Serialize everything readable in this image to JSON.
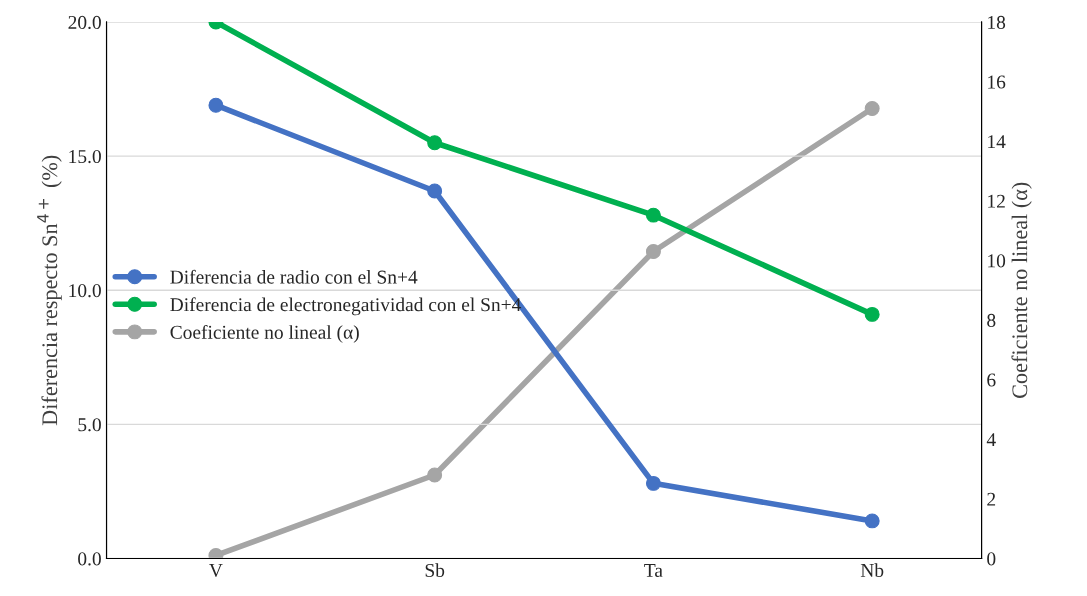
{
  "chart_data": {
    "type": "line",
    "categories": [
      "V",
      "Sb",
      "Ta",
      "Nb"
    ],
    "ylabel": "Diferencia respecto Sn$^{4+}$ (%)",
    "y2label": "Coeficiente no lineal (α)",
    "series": [
      {
        "name": "Diferencia de radio con el Sn+4",
        "color": "#4472c4",
        "values": [
          16.9,
          13.7,
          2.8,
          1.4
        ]
      },
      {
        "name": "Diferencia de electronegatividad con el Sn+4",
        "color": "#00b050",
        "values": [
          20.0,
          15.5,
          12.8,
          9.1
        ]
      },
      {
        "name": "Coeficiente no lineal (α)",
        "color": "#a5a5a5",
        "values": [
          0.1,
          2.8,
          10.3,
          15.1
        ],
        "axis": "y2"
      }
    ],
    "ylim": [
      0,
      20
    ],
    "yticks": [
      {
        "value": 0,
        "label": "0.0"
      },
      {
        "value": 5,
        "label": "5.0"
      },
      {
        "value": 10,
        "label": "10.0"
      },
      {
        "value": 15,
        "label": "15.0"
      },
      {
        "value": 20,
        "label": "20.0"
      }
    ],
    "y2lim": [
      0,
      18
    ],
    "y2ticks": [
      0,
      2,
      4,
      6,
      8,
      10,
      12,
      14,
      16,
      18
    ],
    "grid": "y",
    "legend": "left",
    "marker": "circle",
    "line_style": "solid"
  }
}
